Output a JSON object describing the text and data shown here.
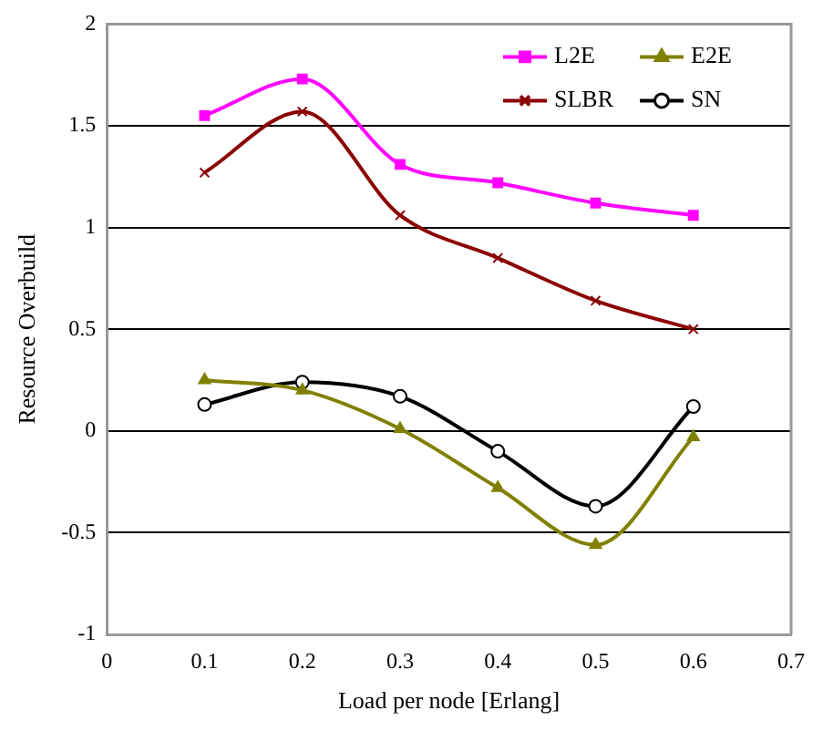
{
  "chart_data": {
    "type": "line",
    "xlabel": "Load per node [Erlang]",
    "ylabel": "Resource Overbuild",
    "x": [
      0.1,
      0.2,
      0.3,
      0.4,
      0.5,
      0.6
    ],
    "series": [
      {
        "name": "L2E",
        "color": "#ff00ff",
        "marker": "square",
        "values": [
          1.55,
          1.73,
          1.31,
          1.22,
          1.12,
          1.06
        ]
      },
      {
        "name": "E2E",
        "color": "#808000",
        "marker": "triangle",
        "values": [
          0.25,
          0.2,
          0.01,
          -0.28,
          -0.56,
          -0.03
        ]
      },
      {
        "name": "SLBR",
        "color": "#8b0000",
        "marker": "cross",
        "values": [
          1.27,
          1.57,
          1.06,
          0.85,
          0.64,
          0.5
        ]
      },
      {
        "name": "SN",
        "color": "#000000",
        "marker": "circle",
        "values": [
          0.13,
          0.24,
          0.17,
          -0.1,
          -0.37,
          0.12
        ]
      }
    ],
    "xlim": [
      0,
      0.7
    ],
    "xticks": [
      0,
      0.1,
      0.2,
      0.3,
      0.4,
      0.5,
      0.6,
      0.7
    ],
    "ylim": [
      -1,
      2
    ],
    "yticks": [
      -1,
      -0.5,
      0,
      0.5,
      1,
      1.5,
      2
    ],
    "grid": "y",
    "legend": "top right",
    "line_style": "solid"
  }
}
